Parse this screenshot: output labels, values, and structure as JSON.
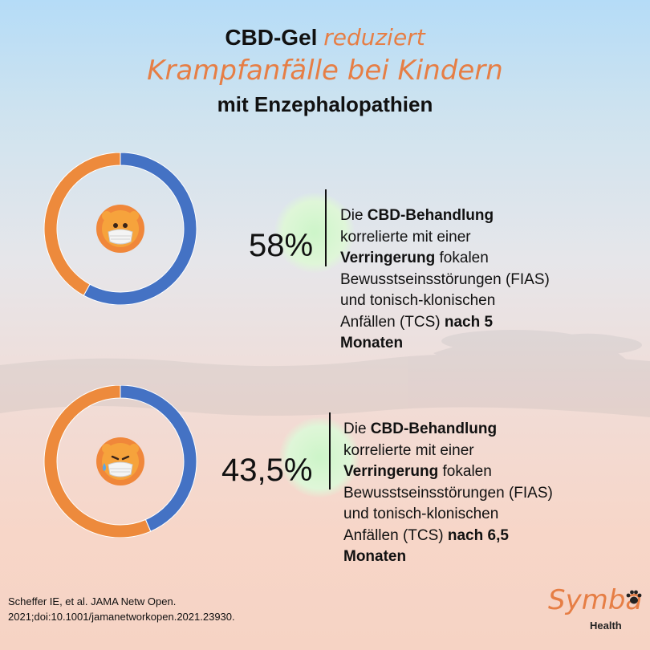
{
  "title": {
    "line1_bold": "CBD-Gel",
    "line1_highlight": "reduziert",
    "line2": "Krampfanfälle bei Kindern",
    "line3": "mit Enzephalopathien"
  },
  "colors": {
    "accent_orange": "#e67e45",
    "donut_blue": "#4472c4",
    "donut_orange": "#ed8a3c"
  },
  "chart_data": [
    {
      "type": "pie",
      "donut": true,
      "values": [
        58,
        42
      ],
      "label": "58%",
      "center_icon": "lion-mask-icon",
      "description": {
        "part1": "Die ",
        "bold1": "CBD-Behandlung",
        "part2": " korrelierte mit einer ",
        "bold2": "Verringerung",
        "part3": " fokalen Bewusstseinsstörungen (FIAS) und tonisch-klonischen Anfällen (TCS) ",
        "bold3": "nach 5 Monaten"
      }
    },
    {
      "type": "pie",
      "donut": true,
      "values": [
        43.5,
        56.5
      ],
      "label": "43,5%",
      "center_icon": "lion-mask-sweat-icon",
      "description": {
        "part1": "Die ",
        "bold1": "CBD-Behandlung",
        "part2": " korrelierte mit einer ",
        "bold2": "Verringerung",
        "part3": " fokalen Bewusstseinsstörungen (FIAS) und tonisch-klonischen Anfällen (TCS) ",
        "bold3": "nach 6,5 Monaten"
      }
    }
  ],
  "citation": "Scheffer IE, et al. JAMA Netw Open. 2021;doi:10.1001/jamanetworkopen.2021.23930.",
  "logo": {
    "word": "Symba",
    "sub": "Health",
    "icon": "paw-icon"
  }
}
